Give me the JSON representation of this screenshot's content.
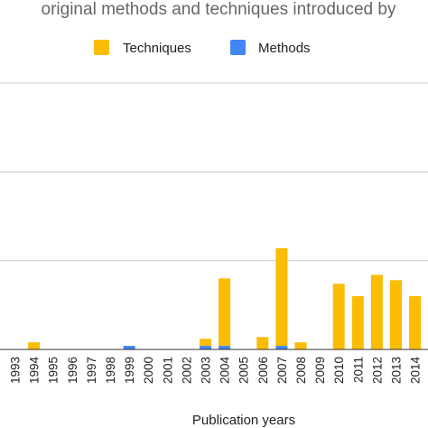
{
  "colors": {
    "techniques": "#fbbc04",
    "methods": "#4285f4",
    "grid": "#cccccc",
    "title": "#666666"
  },
  "chart_data": {
    "type": "bar",
    "stacked": true,
    "title": "original methods and techniques introduced by",
    "xlabel": "Publication years",
    "ylabel": "",
    "categories": [
      "1993",
      "1994",
      "1995",
      "1996",
      "1997",
      "1998",
      "1999",
      "2000",
      "2001",
      "2002",
      "2003",
      "2004",
      "2005",
      "2006",
      "2007",
      "2008",
      "2009",
      "2010",
      "2011",
      "2012",
      "2013",
      "2014"
    ],
    "series": [
      {
        "name": "Methods",
        "color": "#4285f4",
        "values": [
          0,
          0,
          0,
          0,
          0,
          0,
          0.2,
          0,
          0,
          0,
          0.2,
          0.2,
          0,
          0,
          0.2,
          0,
          0,
          0,
          0,
          0,
          0,
          0
        ]
      },
      {
        "name": "Techniques",
        "color": "#fbbc04",
        "values": [
          0,
          0.4,
          0,
          0,
          0,
          0,
          0,
          0,
          0,
          0,
          0.4,
          3.8,
          0,
          0.7,
          5.5,
          0.4,
          0,
          3.7,
          3.0,
          4.2,
          3.9,
          3.0
        ]
      }
    ],
    "ylim": [
      0,
      15
    ],
    "gridlines": [
      0,
      5,
      10,
      15
    ],
    "grid": true,
    "legend": "top"
  }
}
